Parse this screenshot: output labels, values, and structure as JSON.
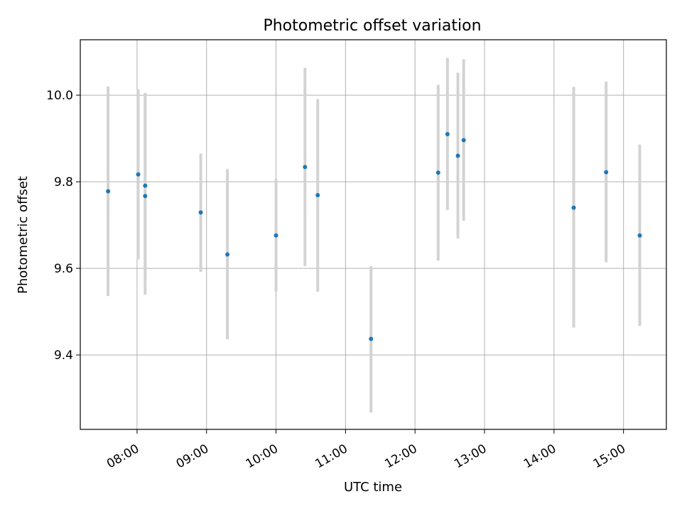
{
  "chart_data": {
    "type": "scatter",
    "title": "Photometric offset variation",
    "xlabel": "UTC time",
    "ylabel": "Photometric offset",
    "x_unit": "UTC time (HH:MM)",
    "xlim": [
      "07:11",
      "15:37"
    ],
    "ylim": [
      9.228,
      10.128
    ],
    "x_ticks": [
      "08:00",
      "09:00",
      "10:00",
      "11:00",
      "12:00",
      "13:00",
      "14:00",
      "15:00"
    ],
    "y_ticks": [
      9.4,
      9.6,
      9.8,
      10.0
    ],
    "y_tick_labels": [
      "9.4",
      "9.6",
      "9.8",
      "10.0"
    ],
    "grid": true,
    "series": [
      {
        "color": "#1f77b4",
        "error_bar_color": "#d3d3d3",
        "points": [
          {
            "x": "07:35",
            "y": 9.778,
            "ylo": 9.536,
            "yhi": 10.02
          },
          {
            "x": "08:01",
            "y": 9.817,
            "ylo": 9.62,
            "yhi": 10.014
          },
          {
            "x": "08:07",
            "y": 9.791,
            "ylo": 9.577,
            "yhi": 10.005
          },
          {
            "x": "08:07",
            "y": 9.767,
            "ylo": 9.539,
            "yhi": 9.995
          },
          {
            "x": "08:55",
            "y": 9.729,
            "ylo": 9.592,
            "yhi": 9.865
          },
          {
            "x": "09:18",
            "y": 9.632,
            "ylo": 9.436,
            "yhi": 9.829
          },
          {
            "x": "10:00",
            "y": 9.676,
            "ylo": 9.546,
            "yhi": 9.806
          },
          {
            "x": "10:25",
            "y": 9.834,
            "ylo": 9.605,
            "yhi": 10.063
          },
          {
            "x": "10:36",
            "y": 9.769,
            "ylo": 9.546,
            "yhi": 9.991
          },
          {
            "x": "11:22",
            "y": 9.437,
            "ylo": 9.267,
            "yhi": 9.605
          },
          {
            "x": "12:20",
            "y": 9.821,
            "ylo": 9.618,
            "yhi": 10.024
          },
          {
            "x": "12:28",
            "y": 9.91,
            "ylo": 9.735,
            "yhi": 10.086
          },
          {
            "x": "12:37",
            "y": 9.86,
            "ylo": 9.669,
            "yhi": 10.052
          },
          {
            "x": "12:42",
            "y": 9.896,
            "ylo": 9.71,
            "yhi": 10.083
          },
          {
            "x": "14:17",
            "y": 9.74,
            "ylo": 9.463,
            "yhi": 10.019
          },
          {
            "x": "14:45",
            "y": 9.822,
            "ylo": 9.614,
            "yhi": 10.031
          },
          {
            "x": "15:14",
            "y": 9.676,
            "ylo": 9.467,
            "yhi": 9.886
          }
        ]
      }
    ]
  }
}
